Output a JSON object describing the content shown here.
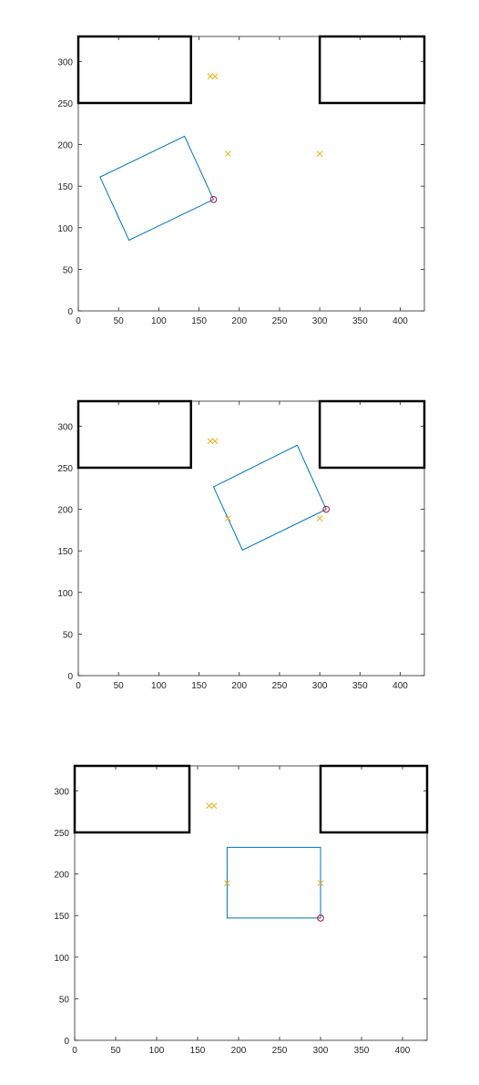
{
  "chart_data": [
    {
      "type": "scatter",
      "xlim": [
        0,
        430
      ],
      "ylim": [
        0,
        330
      ],
      "xticks": [
        0,
        50,
        100,
        150,
        200,
        250,
        300,
        350,
        400
      ],
      "yticks": [
        0,
        50,
        100,
        150,
        200,
        250,
        300
      ],
      "grid": false,
      "obstacles": [
        {
          "x": [
            0,
            140
          ],
          "y": [
            250,
            330
          ]
        },
        {
          "x": [
            300,
            430
          ],
          "y": [
            250,
            330
          ]
        }
      ],
      "markers_x": [
        {
          "x": 164,
          "y": 282
        },
        {
          "x": 170,
          "y": 282
        },
        {
          "x": 186,
          "y": 189
        },
        {
          "x": 300,
          "y": 189
        }
      ],
      "marker_o": {
        "x": 168,
        "y": 134
      },
      "rectangle": [
        [
          168,
          134
        ],
        [
          132,
          210
        ],
        [
          27,
          161
        ],
        [
          63,
          85
        ]
      ]
    },
    {
      "type": "scatter",
      "xlim": [
        0,
        430
      ],
      "ylim": [
        0,
        330
      ],
      "xticks": [
        0,
        50,
        100,
        150,
        200,
        250,
        300,
        350,
        400
      ],
      "yticks": [
        0,
        50,
        100,
        150,
        200,
        250,
        300
      ],
      "grid": false,
      "obstacles": [
        {
          "x": [
            0,
            140
          ],
          "y": [
            250,
            330
          ]
        },
        {
          "x": [
            300,
            430
          ],
          "y": [
            250,
            330
          ]
        }
      ],
      "markers_x": [
        {
          "x": 164,
          "y": 282
        },
        {
          "x": 170,
          "y": 282
        },
        {
          "x": 186,
          "y": 189
        },
        {
          "x": 300,
          "y": 189
        }
      ],
      "marker_o": {
        "x": 308,
        "y": 200
      },
      "rectangle": [
        [
          308,
          200
        ],
        [
          272,
          277
        ],
        [
          168,
          227
        ],
        [
          204,
          151
        ]
      ]
    },
    {
      "type": "scatter",
      "xlim": [
        0,
        430
      ],
      "ylim": [
        0,
        330
      ],
      "xticks": [
        0,
        50,
        100,
        150,
        200,
        250,
        300,
        350,
        400
      ],
      "yticks": [
        0,
        50,
        100,
        150,
        200,
        250,
        300
      ],
      "grid": false,
      "obstacles": [
        {
          "x": [
            0,
            140
          ],
          "y": [
            250,
            330
          ]
        },
        {
          "x": [
            300,
            430
          ],
          "y": [
            250,
            330
          ]
        }
      ],
      "markers_x": [
        {
          "x": 164,
          "y": 282
        },
        {
          "x": 170,
          "y": 282
        },
        {
          "x": 186,
          "y": 189
        },
        {
          "x": 300,
          "y": 189
        }
      ],
      "marker_o": {
        "x": 300,
        "y": 147
      },
      "rectangle": [
        [
          300,
          147
        ],
        [
          300,
          232
        ],
        [
          186,
          232
        ],
        [
          186,
          147
        ]
      ]
    }
  ],
  "colors": {
    "axes": "#262626",
    "obstacle": "#000000",
    "rectangle": "#0072BD",
    "x_marker": "#EDB120",
    "o_marker": "#A2142F"
  }
}
